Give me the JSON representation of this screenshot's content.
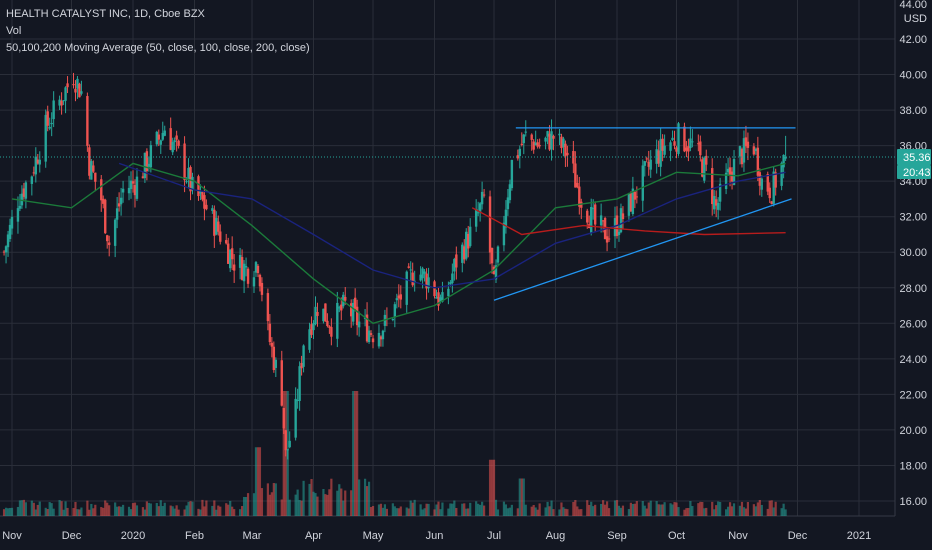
{
  "colors": {
    "background": "#131722",
    "grid": "#2a2e39",
    "text": "#d1d4dc",
    "candle_up": "#26a69a",
    "candle_down": "#ef5350",
    "ma50": "#1b7a3a",
    "ma100": "#1a237e",
    "ma200": "#b71c1c",
    "trendline": "#2196f3",
    "price_badge": "#26a69a"
  },
  "legend": {
    "title": "HEALTH CATALYST INC, 1D, Cboe BZX",
    "volume": "Vol",
    "moving_average": "50,100,200 Moving Average (50, close, 100, close, 200, close)"
  },
  "price_axis": {
    "currency": "USD",
    "top_label": "44.00",
    "last_price": "35.36",
    "countdown": "20:43"
  },
  "chart_data": {
    "type": "candlestick",
    "title": "HEALTH CATALYST INC, 1D, Cboe BZX",
    "ylim": [
      15,
      44
    ],
    "yticks": [
      "16.00",
      "18.00",
      "20.00",
      "22.00",
      "24.00",
      "26.00",
      "28.00",
      "30.00",
      "32.00",
      "34.00",
      "36.00",
      "38.00",
      "40.00",
      "42.00"
    ],
    "xticks": [
      "Nov",
      "Dec",
      "2020",
      "Feb",
      "Mar",
      "Apr",
      "May",
      "Jun",
      "Jul",
      "Aug",
      "Sep",
      "Oct",
      "Nov",
      "Dec",
      "2021"
    ],
    "grid": true,
    "price_path": [
      [
        "2019-10-28",
        30.0
      ],
      [
        "2019-11-04",
        33.0
      ],
      [
        "2019-11-11",
        34.5
      ],
      [
        "2019-11-18",
        37.0
      ],
      [
        "2019-11-25",
        38.5
      ],
      [
        "2019-12-02",
        40.0
      ],
      [
        "2019-12-06",
        39.0
      ],
      [
        "2019-12-10",
        35.0
      ],
      [
        "2019-12-16",
        33.0
      ],
      [
        "2019-12-20",
        30.5
      ],
      [
        "2019-12-27",
        33.5
      ],
      [
        "2020-01-03",
        34.0
      ],
      [
        "2020-01-10",
        35.5
      ],
      [
        "2020-01-17",
        37.0
      ],
      [
        "2020-01-24",
        35.5
      ],
      [
        "2020-01-31",
        33.5
      ],
      [
        "2020-02-07",
        32.5
      ],
      [
        "2020-02-14",
        31.0
      ],
      [
        "2020-02-21",
        29.5
      ],
      [
        "2020-02-28",
        29.0
      ],
      [
        "2020-03-04",
        29.5
      ],
      [
        "2020-03-09",
        25.5
      ],
      [
        "2020-03-16",
        22.0
      ],
      [
        "2020-03-18",
        18.5
      ],
      [
        "2020-03-23",
        21.0
      ],
      [
        "2020-03-27",
        25.0
      ],
      [
        "2020-04-03",
        27.0
      ],
      [
        "2020-04-10",
        26.0
      ],
      [
        "2020-04-17",
        27.0
      ],
      [
        "2020-04-24",
        26.0
      ],
      [
        "2020-05-01",
        25.5
      ],
      [
        "2020-05-08",
        26.0
      ],
      [
        "2020-05-15",
        27.5
      ],
      [
        "2020-05-22",
        29.0
      ],
      [
        "2020-05-29",
        28.5
      ],
      [
        "2020-06-05",
        27.0
      ],
      [
        "2020-06-12",
        29.5
      ],
      [
        "2020-06-19",
        31.0
      ],
      [
        "2020-06-26",
        33.0
      ],
      [
        "2020-07-01",
        28.0
      ],
      [
        "2020-07-06",
        32.0
      ],
      [
        "2020-07-10",
        35.0
      ],
      [
        "2020-07-17",
        36.5
      ],
      [
        "2020-07-24",
        36.0
      ],
      [
        "2020-07-31",
        36.5
      ],
      [
        "2020-08-07",
        35.5
      ],
      [
        "2020-08-14",
        33.0
      ],
      [
        "2020-08-21",
        31.5
      ],
      [
        "2020-08-28",
        31.0
      ],
      [
        "2020-09-04",
        32.0
      ],
      [
        "2020-09-11",
        33.5
      ],
      [
        "2020-09-18",
        35.0
      ],
      [
        "2020-09-25",
        36.0
      ],
      [
        "2020-10-02",
        36.5
      ],
      [
        "2020-10-09",
        36.0
      ],
      [
        "2020-10-16",
        34.5
      ],
      [
        "2020-10-21",
        32.5
      ],
      [
        "2020-10-26",
        34.0
      ],
      [
        "2020-11-02",
        35.5
      ],
      [
        "2020-11-09",
        36.0
      ],
      [
        "2020-11-13",
        34.0
      ],
      [
        "2020-11-18",
        33.5
      ],
      [
        "2020-11-25",
        35.4
      ]
    ],
    "series": [
      {
        "name": "50",
        "type": "line",
        "points": [
          [
            "2019-11-01",
            33.0
          ],
          [
            "2019-12-01",
            32.5
          ],
          [
            "2020-01-01",
            35.0
          ],
          [
            "2020-02-01",
            34.0
          ],
          [
            "2020-03-01",
            31.5
          ],
          [
            "2020-04-01",
            28.5
          ],
          [
            "2020-05-01",
            26.0
          ],
          [
            "2020-06-01",
            27.0
          ],
          [
            "2020-07-01",
            29.0
          ],
          [
            "2020-08-01",
            32.5
          ],
          [
            "2020-09-01",
            33.0
          ],
          [
            "2020-10-01",
            34.5
          ],
          [
            "2020-11-01",
            34.3
          ],
          [
            "2020-11-25",
            35.0
          ]
        ]
      },
      {
        "name": "100",
        "type": "line",
        "points": [
          [
            "2019-12-25",
            35.0
          ],
          [
            "2020-02-01",
            33.5
          ],
          [
            "2020-03-01",
            33.0
          ],
          [
            "2020-04-01",
            31.0
          ],
          [
            "2020-05-01",
            29.0
          ],
          [
            "2020-06-01",
            28.0
          ],
          [
            "2020-07-01",
            28.5
          ],
          [
            "2020-08-01",
            30.5
          ],
          [
            "2020-09-01",
            31.5
          ],
          [
            "2020-10-01",
            33.0
          ],
          [
            "2020-11-01",
            34.0
          ],
          [
            "2020-11-25",
            34.5
          ]
        ]
      },
      {
        "name": "200",
        "type": "line",
        "points": [
          [
            "2020-06-20",
            32.5
          ],
          [
            "2020-07-15",
            31.0
          ],
          [
            "2020-08-15",
            31.5
          ],
          [
            "2020-09-15",
            31.2
          ],
          [
            "2020-10-15",
            31.0
          ],
          [
            "2020-11-25",
            31.1
          ]
        ]
      }
    ],
    "trendlines": [
      {
        "from": [
          "2020-07-01",
          27.3
        ],
        "to": [
          "2020-11-28",
          33.0
        ]
      },
      {
        "from": [
          "2020-07-12",
          37.0
        ],
        "to": [
          "2020-11-30",
          37.0
        ]
      }
    ],
    "volume_scale": "relative",
    "volume_spikes": [
      [
        "2020-03-18",
        1.0
      ],
      [
        "2020-04-22",
        1.0
      ],
      [
        "2020-03-04",
        0.55
      ],
      [
        "2020-06-30",
        0.45
      ],
      [
        "2020-07-15",
        0.3
      ]
    ],
    "last_price": 35.36
  }
}
